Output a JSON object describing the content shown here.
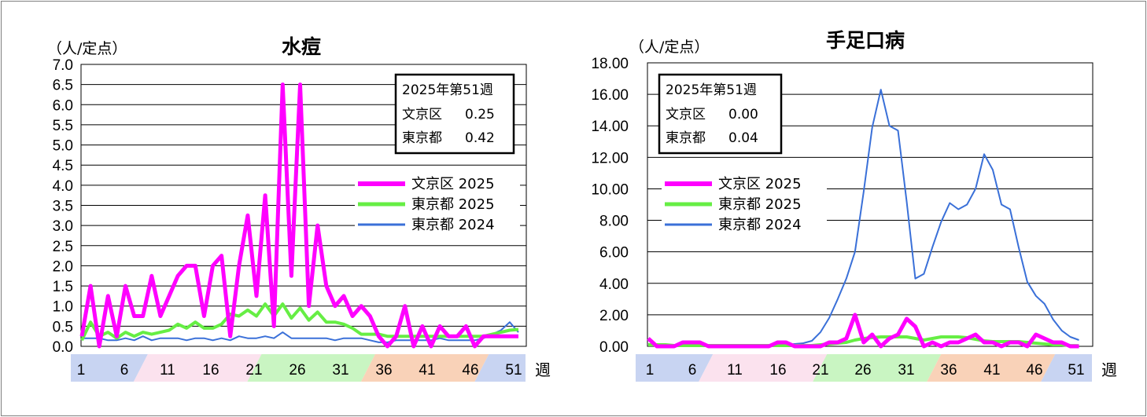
{
  "colors": {
    "bunkyo_2025": "#ff00ff",
    "tokyo_2025": "#66ee44",
    "tokyo_2024": "#3a70d8",
    "band_blue": "#c8d4f2",
    "band_pink": "#fbe2ee",
    "band_green": "#c9f5c2",
    "band_orange": "#f9d2b8"
  },
  "week_axis": {
    "labels": [
      "1",
      "6",
      "11",
      "16",
      "21",
      "26",
      "31",
      "36",
      "41",
      "46",
      "51"
    ],
    "unit": "週"
  },
  "chart_data": [
    {
      "type": "line",
      "title": "水痘",
      "ylabel": "（人/定点）",
      "ylim": [
        0,
        7.0
      ],
      "yticks": [
        "0.0",
        "0.5",
        "1.0",
        "1.5",
        "2.0",
        "2.5",
        "3.0",
        "3.5",
        "4.0",
        "4.5",
        "5.0",
        "5.5",
        "6.0",
        "6.5",
        "7.0"
      ],
      "grid": true,
      "legend_position": "right",
      "info_box": {
        "heading": "2025年第51週",
        "rows": [
          {
            "label": "文京区",
            "value": "0.25"
          },
          {
            "label": "東京都",
            "value": "0.42"
          }
        ]
      },
      "series": [
        {
          "name": "文京区 2025",
          "color": "#ff00ff",
          "values": [
            0.25,
            1.5,
            0.0,
            1.25,
            0.25,
            1.5,
            0.75,
            0.75,
            1.75,
            0.75,
            1.25,
            1.75,
            2.0,
            2.0,
            0.75,
            2.0,
            2.25,
            0.25,
            2.0,
            3.25,
            1.25,
            3.75,
            0.5,
            6.5,
            1.75,
            6.5,
            1.0,
            3.0,
            1.5,
            1.0,
            1.25,
            0.75,
            1.0,
            0.75,
            0.25,
            0.0,
            0.25,
            1.0,
            0.0,
            0.5,
            0.0,
            0.5,
            0.25,
            0.25,
            0.5,
            0.0,
            0.25,
            0.25,
            0.25,
            0.25,
            0.25
          ]
        },
        {
          "name": "東京都 2025",
          "color": "#66ee44",
          "values": [
            0.15,
            0.6,
            0.25,
            0.35,
            0.2,
            0.35,
            0.25,
            0.35,
            0.3,
            0.35,
            0.4,
            0.55,
            0.45,
            0.6,
            0.45,
            0.45,
            0.55,
            0.8,
            0.75,
            0.9,
            0.75,
            1.05,
            0.75,
            1.05,
            0.7,
            0.95,
            0.65,
            0.85,
            0.6,
            0.6,
            0.55,
            0.45,
            0.3,
            0.3,
            0.3,
            0.25,
            0.25,
            0.25,
            0.25,
            0.25,
            0.25,
            0.25,
            0.25,
            0.25,
            0.25,
            0.25,
            0.25,
            0.3,
            0.35,
            0.4,
            0.42
          ]
        },
        {
          "name": "東京都 2024",
          "color": "#3a70d8",
          "values": [
            0.2,
            0.2,
            0.2,
            0.15,
            0.15,
            0.2,
            0.15,
            0.25,
            0.15,
            0.2,
            0.2,
            0.2,
            0.15,
            0.2,
            0.2,
            0.15,
            0.2,
            0.15,
            0.25,
            0.2,
            0.2,
            0.25,
            0.2,
            0.35,
            0.2,
            0.2,
            0.2,
            0.2,
            0.2,
            0.15,
            0.2,
            0.2,
            0.2,
            0.15,
            0.1,
            0.1,
            0.15,
            0.15,
            0.15,
            0.15,
            0.15,
            0.2,
            0.15,
            0.15,
            0.15,
            0.15,
            0.2,
            0.3,
            0.4,
            0.6,
            0.35
          ]
        }
      ]
    },
    {
      "type": "line",
      "title": "手足口病",
      "ylabel": "（人/定点）",
      "ylim": [
        0,
        18.0
      ],
      "yticks": [
        "0.00",
        "2.00",
        "4.00",
        "6.00",
        "8.00",
        "10.00",
        "12.00",
        "14.00",
        "16.00",
        "18.00"
      ],
      "grid": true,
      "legend_position": "left",
      "info_box": {
        "heading": "2025年第51週",
        "rows": [
          {
            "label": "文京区",
            "value": "0.00"
          },
          {
            "label": "東京都",
            "value": "0.04"
          }
        ]
      },
      "series": [
        {
          "name": "文京区 2025",
          "color": "#ff00ff",
          "values": [
            0.5,
            0.0,
            0.0,
            0.0,
            0.25,
            0.25,
            0.25,
            0.0,
            0.0,
            0.0,
            0.0,
            0.0,
            0.0,
            0.0,
            0.0,
            0.25,
            0.25,
            0.0,
            0.0,
            0.0,
            0.0,
            0.25,
            0.25,
            0.5,
            2.0,
            0.25,
            0.75,
            0.0,
            0.5,
            0.75,
            1.75,
            1.25,
            0.0,
            0.25,
            0.0,
            0.25,
            0.25,
            0.5,
            0.75,
            0.25,
            0.25,
            0.0,
            0.25,
            0.25,
            0.0,
            0.75,
            0.5,
            0.25,
            0.25,
            0.0,
            0.0
          ]
        },
        {
          "name": "東京都 2025",
          "color": "#66ee44",
          "values": [
            0.1,
            0.1,
            0.1,
            0.05,
            0.05,
            0.05,
            0.05,
            0.05,
            0.05,
            0.05,
            0.05,
            0.05,
            0.05,
            0.05,
            0.05,
            0.05,
            0.05,
            0.05,
            0.05,
            0.05,
            0.1,
            0.15,
            0.2,
            0.25,
            0.4,
            0.5,
            0.55,
            0.6,
            0.6,
            0.6,
            0.6,
            0.5,
            0.4,
            0.5,
            0.6,
            0.6,
            0.6,
            0.55,
            0.45,
            0.35,
            0.3,
            0.3,
            0.3,
            0.3,
            0.25,
            0.2,
            0.15,
            0.1,
            0.1,
            0.05,
            0.04
          ]
        },
        {
          "name": "東京都 2024",
          "color": "#3a70d8",
          "values": [
            0.1,
            0.1,
            0.1,
            0.1,
            0.05,
            0.05,
            0.05,
            0.05,
            0.05,
            0.05,
            0.05,
            0.05,
            0.05,
            0.05,
            0.1,
            0.1,
            0.1,
            0.15,
            0.2,
            0.35,
            0.9,
            1.8,
            3.0,
            4.3,
            6.0,
            9.8,
            13.9,
            16.3,
            14.0,
            13.7,
            9.2,
            4.3,
            4.6,
            6.3,
            7.9,
            9.1,
            8.7,
            9.0,
            10.0,
            12.2,
            11.2,
            9.0,
            8.7,
            6.3,
            4.1,
            3.2,
            2.7,
            1.7,
            1.0,
            0.6,
            0.4
          ]
        }
      ]
    }
  ]
}
